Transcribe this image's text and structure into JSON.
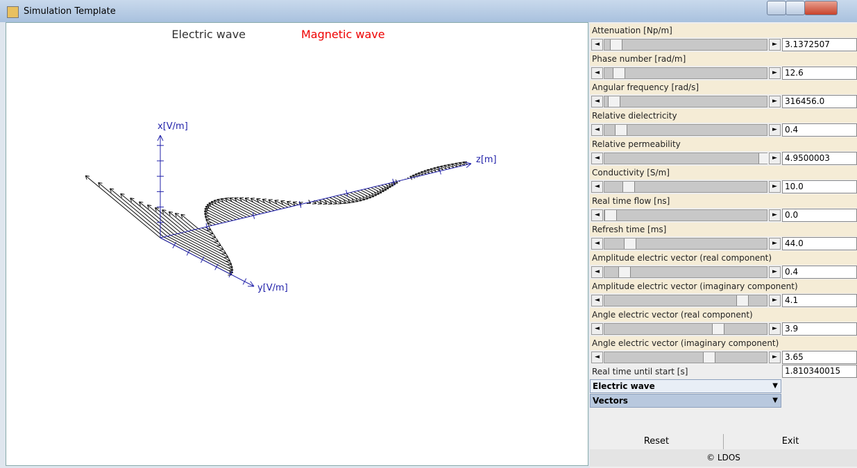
{
  "window": {
    "title": "Simulation Template"
  },
  "canvas": {
    "legend": [
      "Electric wave",
      "Magnetic wave"
    ],
    "axes": {
      "x": "x[V/m]",
      "y": "y[V/m]",
      "z": "z[m]"
    }
  },
  "controls": [
    {
      "label": "Attenuation [Np/m]",
      "value": "3.1372507"
    },
    {
      "label": "Phase number [rad/m]",
      "value": "12.6"
    },
    {
      "label": "Angular frequency [rad/s]",
      "value": "316456.0"
    },
    {
      "label": "Relative dielectricity",
      "value": "0.4"
    },
    {
      "label": "Relative permeability",
      "value": "4.9500003"
    },
    {
      "label": "Conductivity [S/m]",
      "value": "10.0"
    },
    {
      "label": "Real time flow [ns]",
      "value": "0.0"
    },
    {
      "label": "Refresh time [ms]",
      "value": "44.0"
    },
    {
      "label": "Amplitude electric vector (real component)",
      "value": "0.4"
    },
    {
      "label": "Amplitude electric vector (imaginary component)",
      "value": "4.1"
    },
    {
      "label": "Angle electric vector (real component)",
      "value": "3.9"
    },
    {
      "label": "Angle electric vector (imaginary component)",
      "value": "3.65"
    }
  ],
  "real_time": {
    "label": "Real time until start [s]",
    "value": "1.810340015"
  },
  "dropdowns": [
    "Electric wave",
    "Vectors"
  ],
  "buttons": [
    "Reset",
    "Exit"
  ],
  "footer": "© LDOS"
}
